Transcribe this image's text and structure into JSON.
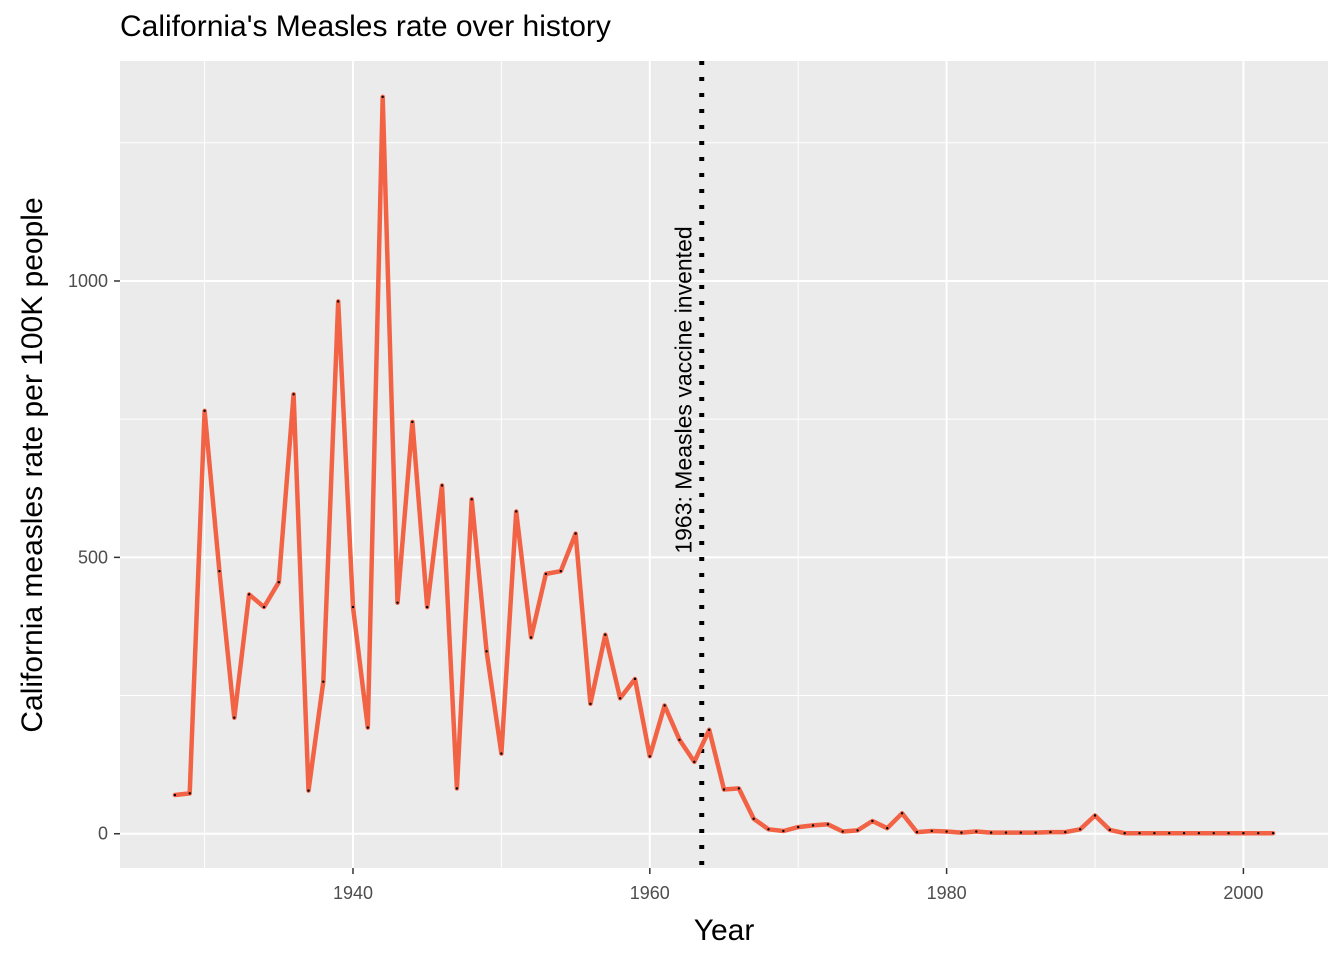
{
  "chart_data": {
    "type": "line",
    "title": "California's Measles rate over history",
    "xlabel": "Year",
    "ylabel": "California measles rate per 100K people",
    "xlim": [
      1924.3,
      2005.7
    ],
    "ylim": [
      -62,
      1398
    ],
    "xticks": [
      1940,
      1960,
      1980,
      2000
    ],
    "yticks": [
      0,
      500,
      1000
    ],
    "grid": true,
    "line_color": "#F26346",
    "point_color": "#000000",
    "background_color": "#EBEBEB",
    "annotation": {
      "x": 1963.5,
      "label": "1963: Measles vaccine invented",
      "style": "dotted-vertical-line"
    },
    "series": [
      {
        "x": [
          1928,
          1929,
          1930,
          1931,
          1932,
          1933,
          1934,
          1935,
          1936,
          1937,
          1938,
          1939,
          1940,
          1941,
          1942,
          1943,
          1944,
          1945,
          1946,
          1947,
          1948,
          1949,
          1950,
          1951,
          1952,
          1953,
          1954,
          1955,
          1956,
          1957,
          1958,
          1959,
          1960,
          1961,
          1962,
          1963,
          1964,
          1965,
          1966,
          1967,
          1968,
          1969,
          1970,
          1971,
          1972,
          1973,
          1974,
          1975,
          1976,
          1977,
          1978,
          1979,
          1980,
          1981,
          1982,
          1983,
          1984,
          1985,
          1986,
          1987,
          1988,
          1989,
          1990,
          1991,
          1992,
          1993,
          1994,
          1995,
          1996,
          1997,
          1998,
          1999,
          2000,
          2001,
          2002
        ],
        "y": [
          70,
          73,
          765,
          475,
          210,
          433,
          410,
          455,
          795,
          78,
          275,
          963,
          410,
          192,
          1333,
          418,
          745,
          410,
          630,
          82,
          605,
          330,
          145,
          583,
          355,
          470,
          475,
          543,
          235,
          360,
          245,
          280,
          140,
          232,
          170,
          130,
          188,
          80,
          82,
          27,
          8,
          5,
          12,
          15,
          17,
          4,
          6,
          23,
          10,
          37,
          3,
          5,
          4,
          2,
          4,
          2,
          2,
          2,
          2,
          3,
          3,
          8,
          33,
          7,
          1,
          1,
          1,
          1,
          1,
          1,
          1,
          1,
          1,
          1,
          1
        ]
      }
    ]
  }
}
